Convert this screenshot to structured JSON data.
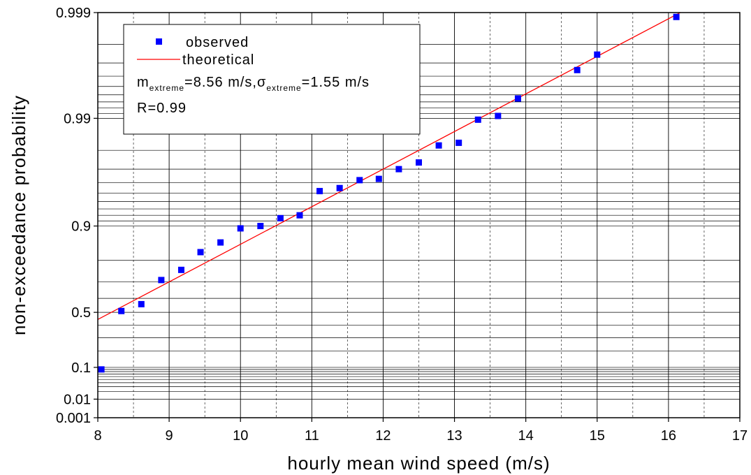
{
  "chart_data": {
    "type": "scatter",
    "title": "",
    "xlabel": "hourly mean wind speed (m/s)",
    "ylabel": "non-exceedance probability",
    "xlim": [
      8,
      17
    ],
    "x_ticks": [
      8,
      9,
      10,
      11,
      12,
      13,
      14,
      15,
      16,
      17
    ],
    "y_scale": "gumbel probability",
    "y_ticks": [
      "0.001",
      "0.01",
      "0.1",
      "0.5",
      "0.9",
      "0.99",
      "0.999"
    ],
    "grid": true,
    "legend_position": "top-left",
    "series": [
      {
        "name": "observed",
        "kind": "markers",
        "color": "#0000ff",
        "x": [
          8.05,
          8.33,
          8.61,
          8.89,
          9.17,
          9.44,
          9.72,
          10.0,
          10.28,
          10.56,
          10.83,
          11.11,
          11.39,
          11.67,
          11.94,
          12.22,
          12.5,
          12.78,
          13.06,
          13.33,
          13.61,
          13.89,
          14.72,
          15.0,
          16.11
        ],
        "y": [
          0.09,
          0.51,
          0.56,
          0.71,
          0.76,
          0.83,
          0.86,
          0.895,
          0.9,
          0.915,
          0.92,
          0.952,
          0.955,
          0.962,
          0.963,
          0.97,
          0.974,
          0.982,
          0.983,
          0.9897,
          0.9905,
          0.9935,
          0.9965,
          0.9975,
          0.9989
        ]
      },
      {
        "name": "theoretical",
        "kind": "line",
        "color": "#ff0000",
        "x": [
          8.0,
          16.6
        ],
        "y": [
          0.445,
          0.9993
        ]
      }
    ],
    "annotations": {
      "m_label": "m",
      "m_sub": "extreme",
      "m_value": "=8.56 m/s,",
      "sigma_label": "σ",
      "sigma_sub": "extreme",
      "sigma_value": "=1.55 m/s",
      "r_text": "R=0.99"
    }
  }
}
